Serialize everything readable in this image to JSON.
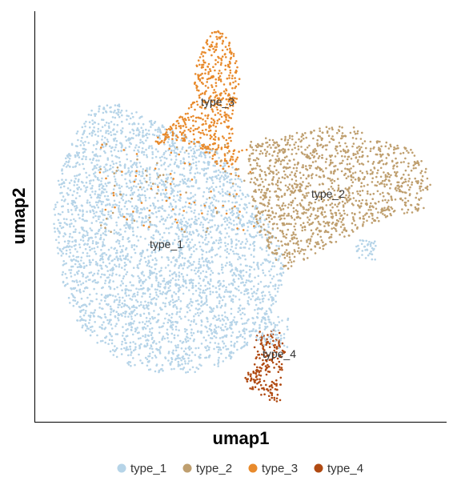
{
  "chart_data": {
    "type": "scatter",
    "xlabel": "umap1",
    "ylabel": "umap2",
    "grid": false,
    "legend_position": "bottom",
    "axis_ticks": false,
    "series": [
      {
        "name": "type_1",
        "color": "#b6d4e8",
        "label_text": "type_1",
        "label_at": {
          "x": -2.3,
          "y": 1.8
        }
      },
      {
        "name": "type_2",
        "color": "#bf9f6f",
        "label_text": "type_2",
        "label_at": {
          "x": 3.6,
          "y": 4.1
        }
      },
      {
        "name": "type_3",
        "color": "#e88a2c",
        "label_text": "type_3",
        "label_at": {
          "x": 0.9,
          "y": 7.5
        }
      },
      {
        "name": "type_4",
        "color": "#b04a12",
        "label_text": "type_4",
        "label_at": {
          "x": 2.4,
          "y": -3.6
        }
      }
    ]
  }
}
